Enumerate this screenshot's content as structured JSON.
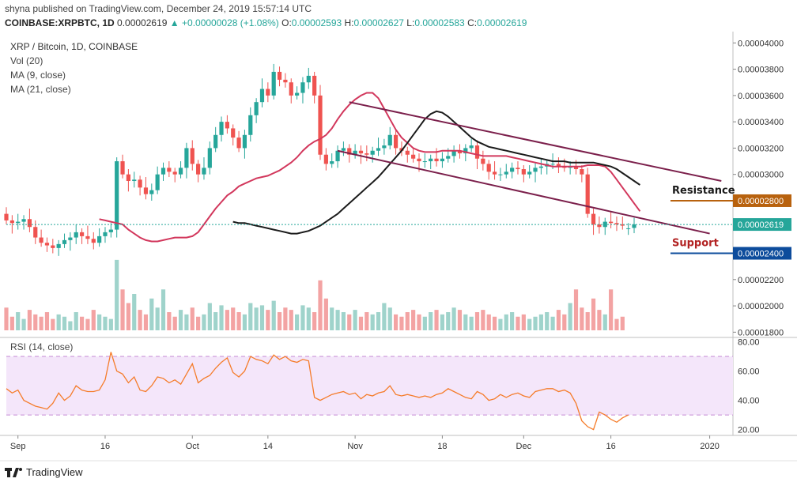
{
  "header": {
    "published": "shyna published on TradingView.com, December 24, 2019 15:57:14 UTC",
    "symbol": "COINBASE:XRPBTC, 1D",
    "last": "0.00002619",
    "change_arrow": "▲",
    "change": "+0.00000028 (+1.08%)",
    "o_label": "O:",
    "o_value": "0.00002593",
    "h_label": "H:",
    "h_value": "0.00002627",
    "l_label": "L:",
    "l_value": "0.00002583",
    "c_label": "C:",
    "c_value": "0.00002619"
  },
  "legend": {
    "title": "XRP / Bitcoin, 1D, COINBASE",
    "vol": "Vol (20)",
    "ma9": "MA (9, close)",
    "ma21": "MA (21, close)",
    "rsi": "RSI (14, close)"
  },
  "annotations": {
    "resistance": "Resistance",
    "support": "Support"
  },
  "price_tags": {
    "resistance_value": "0.00002800",
    "current_value": "0.00002619",
    "support_value": "0.00002400"
  },
  "footer": {
    "brand": "TradingView"
  },
  "colors": {
    "up": "#26a69a",
    "down": "#ef5350",
    "vol_up": "#9fd3cb",
    "vol_down": "#f3a3a3",
    "ma9": "#d2375c",
    "ma21": "#1b1b1b",
    "channel": "#7b1f4b",
    "rsi": "#f57c2a",
    "rsi_band": "#f4e6fa",
    "resistance_tag": "#b8620e",
    "support_tag": "#0d4c9c",
    "current_tag": "#26a69a"
  },
  "chart_data": {
    "type": "candlestick",
    "title": "XRP / Bitcoin, 1D, COINBASE",
    "price_axis_ticks": [
      "0.00004000",
      "0.00003800",
      "0.00003600",
      "0.00003400",
      "0.00003200",
      "0.00003000",
      "0.00002800",
      "0.00002600",
      "0.00002400",
      "0.00002200",
      "0.00002000",
      "0.00001800"
    ],
    "price_axis_values": [
      4e-05,
      3.8e-05,
      3.6e-05,
      3.4e-05,
      3.2e-05,
      3e-05,
      2.8e-05,
      2.6e-05,
      2.4e-05,
      2.2e-05,
      2e-05,
      1.8e-05
    ],
    "ylim": [
      1.76e-05,
      4.08e-05
    ],
    "time_axis_labels": [
      "Sep",
      "16",
      "Oct",
      "14",
      "Nov",
      "18",
      "Dec",
      "16",
      "2020"
    ],
    "time_axis_day_index": [
      2,
      17,
      32,
      45,
      60,
      75,
      89,
      104,
      121
    ],
    "day_range": [
      0,
      125
    ],
    "rsi_axis_ticks": [
      "80.00",
      "60.00",
      "40.00",
      "20.00"
    ],
    "rsi_axis_values": [
      80,
      60,
      40,
      20
    ],
    "rsi_band": [
      30,
      70
    ],
    "rsi_ylim": [
      16,
      83
    ],
    "candles_close": [
      2.65,
      2.63,
      2.64,
      2.66,
      2.6,
      2.52,
      2.48,
      2.46,
      2.44,
      2.47,
      2.5,
      2.52,
      2.56,
      2.53,
      2.51,
      2.48,
      2.53,
      2.56,
      2.58,
      3.1,
      3.0,
      2.95,
      2.96,
      2.9,
      2.85,
      2.88,
      3.0,
      3.05,
      3.02,
      3.0,
      3.05,
      3.2,
      3.08,
      3.0,
      3.05,
      3.2,
      3.3,
      3.4,
      3.35,
      3.28,
      3.2,
      3.3,
      3.45,
      3.55,
      3.65,
      3.6,
      3.78,
      3.72,
      3.7,
      3.6,
      3.62,
      3.7,
      3.75,
      3.6,
      3.15,
      3.08,
      3.1,
      3.18,
      3.2,
      3.15,
      3.18,
      3.16,
      3.15,
      3.18,
      3.2,
      3.22,
      3.3,
      3.2,
      3.18,
      3.15,
      3.12,
      3.1,
      3.1,
      3.12,
      3.1,
      3.12,
      3.14,
      3.18,
      3.16,
      3.2,
      3.22,
      3.12,
      3.08,
      3.02,
      3.0,
      3.0,
      3.02,
      3.05,
      3.04,
      3.0,
      3.02,
      3.05,
      3.06,
      3.08,
      3.08,
      3.06,
      3.05,
      3.06,
      3.04,
      3.0,
      2.7,
      2.62,
      2.6,
      2.64,
      2.63,
      2.62,
      2.61,
      2.59,
      2.62
    ],
    "candles_open": [
      2.7,
      2.65,
      2.63,
      2.64,
      2.66,
      2.6,
      2.52,
      2.48,
      2.46,
      2.44,
      2.47,
      2.5,
      2.52,
      2.56,
      2.53,
      2.51,
      2.48,
      2.53,
      2.56,
      2.58,
      3.1,
      3.0,
      2.95,
      2.96,
      2.9,
      2.85,
      2.88,
      3.0,
      3.05,
      3.02,
      3.0,
      3.05,
      3.2,
      3.08,
      3.0,
      3.05,
      3.2,
      3.3,
      3.4,
      3.35,
      3.28,
      3.2,
      3.3,
      3.45,
      3.55,
      3.65,
      3.6,
      3.78,
      3.72,
      3.7,
      3.6,
      3.62,
      3.7,
      3.75,
      3.6,
      3.15,
      3.08,
      3.1,
      3.18,
      3.2,
      3.15,
      3.18,
      3.16,
      3.15,
      3.18,
      3.2,
      3.22,
      3.3,
      3.2,
      3.18,
      3.15,
      3.12,
      3.1,
      3.1,
      3.12,
      3.1,
      3.12,
      3.14,
      3.18,
      3.16,
      3.2,
      3.22,
      3.12,
      3.08,
      3.02,
      3.0,
      3.0,
      3.02,
      3.05,
      3.04,
      3.0,
      3.02,
      3.05,
      3.06,
      3.08,
      3.08,
      3.06,
      3.05,
      3.06,
      3.04,
      3.0,
      2.7,
      2.62,
      2.6,
      2.64,
      2.63,
      2.62,
      2.59,
      2.593
    ],
    "ma9": [
      2.66,
      2.65,
      2.64,
      2.63,
      2.62,
      2.58,
      2.55,
      2.52,
      2.5,
      2.49,
      2.49,
      2.5,
      2.51,
      2.52,
      2.52,
      2.52,
      2.53,
      2.56,
      2.62,
      2.68,
      2.74,
      2.79,
      2.84,
      2.87,
      2.91,
      2.93,
      2.95,
      2.97,
      2.98,
      2.99,
      3.01,
      3.03,
      3.06,
      3.09,
      3.13,
      3.18,
      3.22,
      3.25,
      3.27,
      3.3,
      3.35,
      3.42,
      3.48,
      3.53,
      3.57,
      3.6,
      3.62,
      3.62,
      3.58,
      3.5,
      3.42,
      3.34,
      3.28,
      3.24,
      3.2,
      3.18,
      3.17,
      3.17,
      3.17,
      3.18,
      3.18,
      3.18,
      3.18,
      3.17,
      3.16,
      3.15,
      3.14,
      3.14,
      3.14,
      3.14,
      3.14,
      3.13,
      3.12,
      3.11,
      3.1,
      3.09,
      3.08,
      3.07,
      3.06,
      3.06,
      3.06,
      3.06,
      3.06,
      3.06,
      3.07,
      3.07,
      3.07,
      3.06,
      3.02,
      2.96,
      2.9,
      2.84,
      2.78,
      2.72
    ],
    "ma21": [
      2.64,
      2.63,
      2.63,
      2.62,
      2.61,
      2.6,
      2.59,
      2.58,
      2.57,
      2.56,
      2.55,
      2.55,
      2.56,
      2.57,
      2.59,
      2.61,
      2.64,
      2.67,
      2.7,
      2.74,
      2.78,
      2.82,
      2.86,
      2.9,
      2.94,
      2.98,
      3.03,
      3.08,
      3.13,
      3.18,
      3.24,
      3.3,
      3.36,
      3.42,
      3.46,
      3.48,
      3.47,
      3.44,
      3.4,
      3.36,
      3.32,
      3.28,
      3.25,
      3.23,
      3.21,
      3.2,
      3.19,
      3.18,
      3.17,
      3.16,
      3.15,
      3.14,
      3.13,
      3.12,
      3.11,
      3.1,
      3.1,
      3.1,
      3.09,
      3.09,
      3.09,
      3.09,
      3.09,
      3.08,
      3.07,
      3.06,
      3.04,
      3.01,
      2.98,
      2.95,
      2.92
    ],
    "channel_upper": [
      [
        59,
        3.55
      ],
      [
        123,
        2.95
      ]
    ],
    "channel_lower": [
      [
        57,
        3.18
      ],
      [
        121,
        2.55
      ]
    ],
    "resistance": 2.8e-05,
    "support": 2.4e-05,
    "current": 2.619e-05,
    "volume": [
      10,
      6,
      8,
      5,
      9,
      7,
      6,
      8,
      5,
      7,
      6,
      4,
      8,
      6,
      5,
      9,
      7,
      6,
      5,
      31,
      18,
      12,
      16,
      9,
      7,
      14,
      10,
      18,
      8,
      6,
      9,
      7,
      10,
      6,
      7,
      12,
      8,
      11,
      9,
      10,
      8,
      7,
      12,
      10,
      11,
      9,
      13,
      8,
      10,
      9,
      7,
      11,
      10,
      8,
      22,
      14,
      10,
      9,
      8,
      7,
      9,
      6,
      8,
      7,
      8,
      12,
      10,
      7,
      6,
      8,
      9,
      7,
      6,
      8,
      9,
      7,
      8,
      10,
      9,
      7,
      6,
      8,
      9,
      7,
      6,
      5,
      7,
      8,
      6,
      7,
      5,
      6,
      7,
      8,
      6,
      9,
      7,
      12,
      18,
      10,
      8,
      14,
      9,
      7,
      18,
      5,
      6
    ],
    "rsi": [
      48,
      45,
      47,
      40,
      38,
      36,
      35,
      34,
      38,
      45,
      40,
      43,
      50,
      47,
      46,
      46,
      47,
      54,
      73,
      60,
      58,
      52,
      56,
      47,
      46,
      50,
      56,
      55,
      52,
      54,
      51,
      58,
      65,
      52,
      55,
      57,
      62,
      66,
      69,
      59,
      56,
      60,
      70,
      68,
      67,
      65,
      71,
      68,
      70,
      67,
      66,
      68,
      67,
      42,
      40,
      42,
      44,
      45,
      46,
      44,
      45,
      41,
      44,
      43,
      45,
      46,
      50,
      44,
      43,
      44,
      43,
      42,
      43,
      42,
      44,
      45,
      48,
      46,
      44,
      42,
      41,
      46,
      44,
      40,
      41,
      44,
      42,
      44,
      45,
      43,
      42,
      46,
      47,
      48,
      48,
      46,
      47,
      45,
      38,
      26,
      22,
      20,
      32,
      30,
      27,
      25,
      28,
      30
    ]
  }
}
